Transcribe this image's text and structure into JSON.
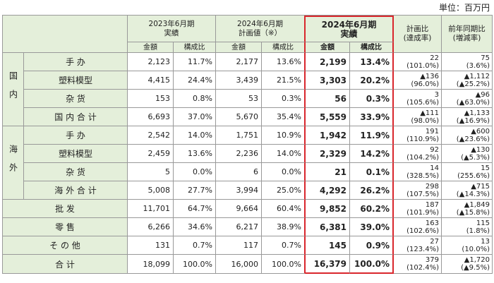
{
  "unit": "単位：百万円",
  "table": {
    "header": {
      "periods": [
        "2023年6月期\n実績",
        "2024年6月期\n計画値（※）",
        "2024年6月期\n実績"
      ],
      "sub": [
        "金額",
        "構成比"
      ],
      "plan_ratio": "計画比\n(達成率)",
      "yoy": "前年同期比\n(増減率)"
    },
    "body": [
      {
        "group": "国内",
        "rows": [
          {
            "label": "手 办",
            "cells": [
              "2,123",
              "11.7%",
              "2,177",
              "13.6%",
              "2,199",
              "13.4%"
            ],
            "plan": [
              "22",
              "(101.0%)"
            ],
            "yoy": [
              "75",
              "(3.6%)"
            ]
          },
          {
            "label": "塑料模型",
            "cells": [
              "4,415",
              "24.4%",
              "3,439",
              "21.5%",
              "3,303",
              "20.2%"
            ],
            "plan": [
              "▲136",
              "(96.0%)"
            ],
            "yoy": [
              "▲1,112",
              "(▲25.2%)"
            ]
          },
          {
            "label": "杂 货",
            "cells": [
              "153",
              "0.8%",
              "53",
              "0.3%",
              "56",
              "0.3%"
            ],
            "plan": [
              "3",
              "(105.6%)"
            ],
            "yoy": [
              "▲96",
              "(▲63.0%)"
            ]
          },
          {
            "label": "国 内 合 计",
            "cells": [
              "6,693",
              "37.0%",
              "5,670",
              "35.4%",
              "5,559",
              "33.9%"
            ],
            "plan": [
              "▲111",
              "(98.0%)"
            ],
            "yoy": [
              "▲1,133",
              "(▲16.9%)"
            ]
          }
        ]
      },
      {
        "group": "海外",
        "rows": [
          {
            "label": "手 办",
            "cells": [
              "2,542",
              "14.0%",
              "1,751",
              "10.9%",
              "1,942",
              "11.9%"
            ],
            "plan": [
              "191",
              "(110.9%)"
            ],
            "yoy": [
              "▲600",
              "(▲23.6%)"
            ]
          },
          {
            "label": "塑料模型",
            "cells": [
              "2,459",
              "13.6%",
              "2,236",
              "14.0%",
              "2,329",
              "14.2%"
            ],
            "plan": [
              "92",
              "(104.2%)"
            ],
            "yoy": [
              "▲130",
              "(▲5.3%)"
            ]
          },
          {
            "label": "杂 货",
            "cells": [
              "5",
              "0.0%",
              "6",
              "0.0%",
              "21",
              "0.1%"
            ],
            "plan": [
              "14",
              "(328.5%)"
            ],
            "yoy": [
              "15",
              "(255.6%)"
            ]
          },
          {
            "label": "海 外 合 计",
            "cells": [
              "5,008",
              "27.7%",
              "3,994",
              "25.0%",
              "4,292",
              "26.2%"
            ],
            "plan": [
              "298",
              "(107.5%)"
            ],
            "yoy": [
              "▲715",
              "(▲14.3%)"
            ]
          }
        ]
      },
      {
        "label": "批 发",
        "cells": [
          "11,701",
          "64.7%",
          "9,664",
          "60.4%",
          "9,852",
          "60.2%"
        ],
        "plan": [
          "187",
          "(101.9%)"
        ],
        "yoy": [
          "▲1,849",
          "(▲15.8%)"
        ]
      },
      {
        "label": "零 售",
        "cells": [
          "6,266",
          "34.6%",
          "6,217",
          "38.9%",
          "6,381",
          "39.0%"
        ],
        "plan": [
          "163",
          "(102.6%)"
        ],
        "yoy": [
          "115",
          "(1.8%)"
        ]
      },
      {
        "label": "そ の 他",
        "cells": [
          "131",
          "0.7%",
          "117",
          "0.7%",
          "145",
          "0.9%"
        ],
        "plan": [
          "27",
          "(123.4%)"
        ],
        "yoy": [
          "13",
          "(10.0%)"
        ]
      },
      {
        "label": "合 计",
        "cells": [
          "18,099",
          "100.0%",
          "16,000",
          "100.0%",
          "16,379",
          "100.0%"
        ],
        "plan": [
          "379",
          "(102.4%)"
        ],
        "yoy": [
          "▲1,720",
          "(▲9.5%)"
        ]
      }
    ]
  }
}
